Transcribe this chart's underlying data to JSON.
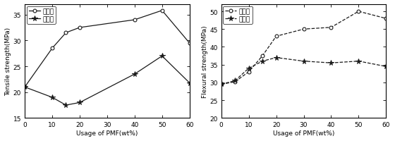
{
  "left": {
    "ylabel": "Tensile strength(MPa)",
    "xlabel": "Usage of PMF(wt%)",
    "ylim": [
      15,
      37
    ],
    "yticks": [
      15,
      20,
      25,
      30,
      35
    ],
    "xlim": [
      0,
      60
    ],
    "xticks": [
      0,
      10,
      20,
      30,
      40,
      50,
      60
    ],
    "treated_x": [
      0,
      10,
      15,
      20,
      40,
      50,
      60
    ],
    "treated_y": [
      21.0,
      28.5,
      31.5,
      32.5,
      34.0,
      35.8,
      29.5
    ],
    "untreated_x": [
      0,
      10,
      15,
      20,
      40,
      50,
      60
    ],
    "untreated_y": [
      21.0,
      19.0,
      17.5,
      18.0,
      23.5,
      27.0,
      21.8
    ],
    "legend_treated": "处理后",
    "legend_untreated": "未处理",
    "line_color": "#1a1a1a",
    "linestyle_treated": "-",
    "linestyle_untreated": "-",
    "marker_treated": "o",
    "marker_untreated": "*"
  },
  "right": {
    "ylabel": "Flexural strength(MPa)",
    "xlabel": "Usage of PMF(wt%)",
    "ylim": [
      20,
      52
    ],
    "yticks": [
      20,
      25,
      30,
      35,
      40,
      45,
      50
    ],
    "xlim": [
      0,
      60
    ],
    "xticks": [
      0,
      10,
      20,
      30,
      40,
      50,
      60
    ],
    "treated_x": [
      0,
      5,
      10,
      15,
      20,
      30,
      40,
      50,
      60
    ],
    "treated_y": [
      29.5,
      30.2,
      33.0,
      37.5,
      43.0,
      45.0,
      45.5,
      50.0,
      48.0
    ],
    "untreated_x": [
      0,
      5,
      10,
      15,
      20,
      30,
      40,
      50,
      60
    ],
    "untreated_y": [
      29.5,
      30.5,
      34.0,
      36.0,
      37.0,
      36.0,
      35.5,
      36.0,
      34.5
    ],
    "legend_treated": "处理后",
    "legend_untreated": "未处理",
    "line_color": "#1a1a1a",
    "linestyle_treated": "--",
    "linestyle_untreated": "--",
    "marker_treated": "o",
    "marker_untreated": "*"
  },
  "font_size": 6.5
}
